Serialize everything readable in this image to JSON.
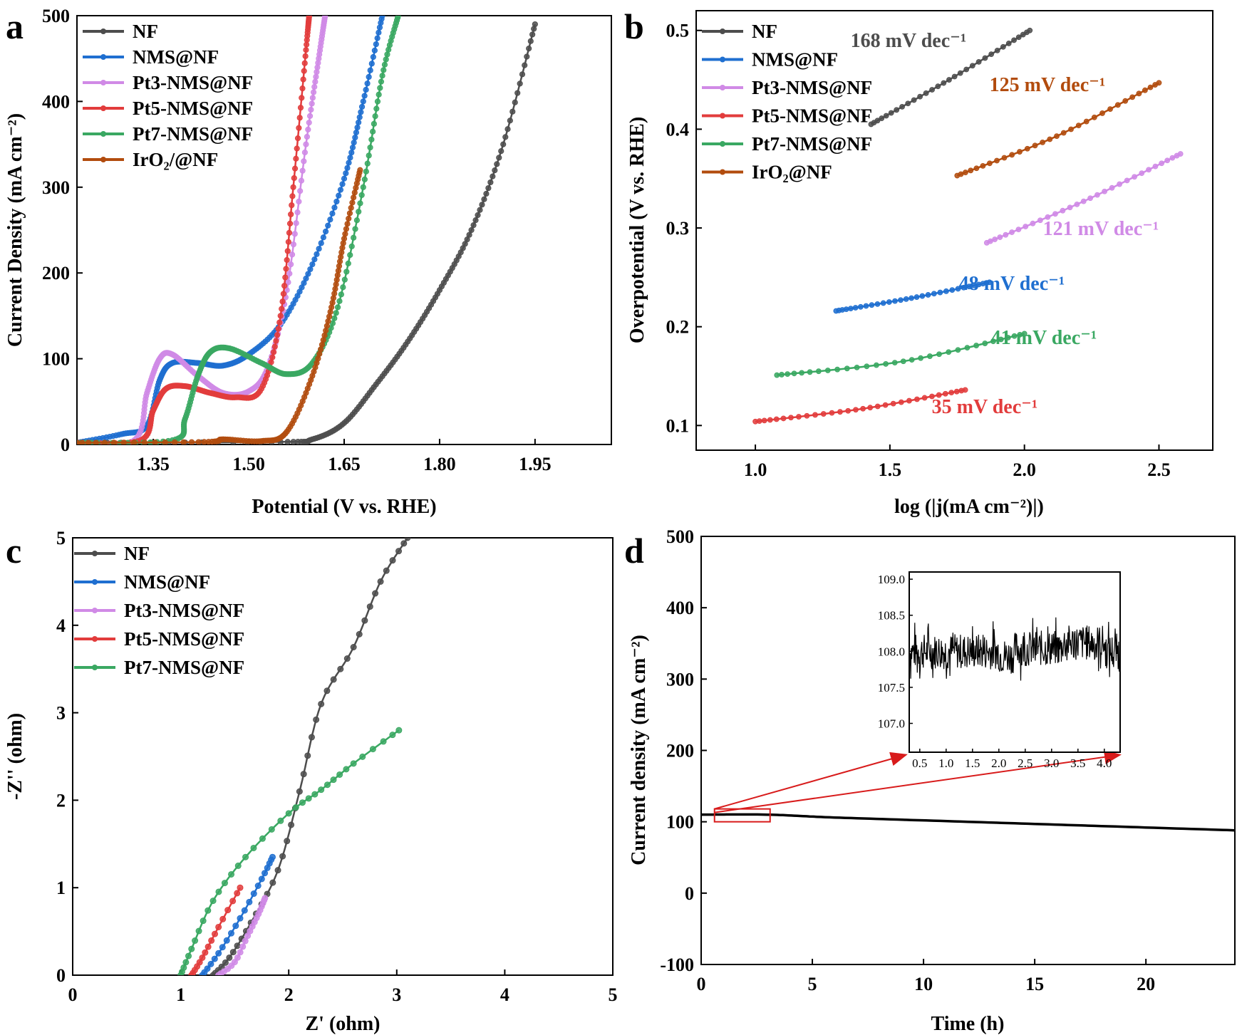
{
  "colors": {
    "NF": "#4d4d4d",
    "NMS": "#1f6fd0",
    "Pt3": "#d08ae6",
    "Pt5": "#e23c3c",
    "Pt7": "#3aa862",
    "IrO2": "#b24c0e",
    "inset_box": "#d81b1b"
  },
  "chart_data": [
    {
      "panel": "a",
      "type": "line",
      "xlabel": "Potential (V vs. RHE)",
      "ylabel": "Current Density (mA cm⁻²)",
      "xlim": [
        1.23,
        2.07
      ],
      "ylim": [
        0,
        500
      ],
      "xticks": [
        "1.35",
        "1.50",
        "1.65",
        "1.80",
        "1.95"
      ],
      "yticks": [
        "0",
        "100",
        "200",
        "300",
        "400",
        "500"
      ],
      "legend_position": "top-left",
      "series": [
        {
          "name": "NF",
          "color_key": "NF",
          "points": [
            [
              1.23,
              2
            ],
            [
              1.55,
              3
            ],
            [
              1.6,
              6
            ],
            [
              1.65,
              25
            ],
            [
              1.7,
              70
            ],
            [
              1.75,
              120
            ],
            [
              1.8,
              180
            ],
            [
              1.85,
              250
            ],
            [
              1.9,
              350
            ],
            [
              1.95,
              490
            ]
          ]
        },
        {
          "name": "NMS@NF",
          "color_key": "NMS",
          "points": [
            [
              1.23,
              2
            ],
            [
              1.3,
              12
            ],
            [
              1.34,
              22
            ],
            [
              1.36,
              75
            ],
            [
              1.38,
              95
            ],
            [
              1.42,
              95
            ],
            [
              1.46,
              92
            ],
            [
              1.5,
              105
            ],
            [
              1.55,
              140
            ],
            [
              1.6,
              210
            ],
            [
              1.65,
              310
            ],
            [
              1.68,
              400
            ],
            [
              1.71,
              500
            ]
          ]
        },
        {
          "name": "Pt3-NMS@NF",
          "color_key": "Pt3",
          "points": [
            [
              1.23,
              2
            ],
            [
              1.32,
              5
            ],
            [
              1.34,
              60
            ],
            [
              1.36,
              100
            ],
            [
              1.38,
              105
            ],
            [
              1.42,
              80
            ],
            [
              1.46,
              60
            ],
            [
              1.5,
              62
            ],
            [
              1.53,
              90
            ],
            [
              1.56,
              180
            ],
            [
              1.59,
              350
            ],
            [
              1.61,
              450
            ],
            [
              1.62,
              500
            ]
          ]
        },
        {
          "name": "Pt5-NMS@NF",
          "color_key": "Pt5",
          "points": [
            [
              1.23,
              2
            ],
            [
              1.33,
              5
            ],
            [
              1.35,
              40
            ],
            [
              1.37,
              65
            ],
            [
              1.4,
              68
            ],
            [
              1.44,
              60
            ],
            [
              1.48,
              55
            ],
            [
              1.52,
              65
            ],
            [
              1.55,
              150
            ],
            [
              1.57,
              300
            ],
            [
              1.59,
              460
            ],
            [
              1.595,
              500
            ]
          ]
        },
        {
          "name": "Pt7-NMS@NF",
          "color_key": "Pt7",
          "points": [
            [
              1.23,
              2
            ],
            [
              1.38,
              5
            ],
            [
              1.4,
              30
            ],
            [
              1.42,
              80
            ],
            [
              1.44,
              108
            ],
            [
              1.47,
              112
            ],
            [
              1.52,
              95
            ],
            [
              1.56,
              82
            ],
            [
              1.6,
              95
            ],
            [
              1.64,
              160
            ],
            [
              1.68,
              300
            ],
            [
              1.71,
              430
            ],
            [
              1.735,
              500
            ]
          ]
        },
        {
          "name": "IrO₂/@NF",
          "color_key": "IrO2",
          "points": [
            [
              1.23,
              2
            ],
            [
              1.43,
              3
            ],
            [
              1.46,
              6
            ],
            [
              1.52,
              4
            ],
            [
              1.56,
              15
            ],
            [
              1.6,
              80
            ],
            [
              1.63,
              160
            ],
            [
              1.65,
              240
            ],
            [
              1.675,
              320
            ]
          ]
        }
      ]
    },
    {
      "panel": "b",
      "type": "line",
      "xlabel": "log (|j(mA cm⁻²)|)",
      "ylabel": "Overpotential (V vs. RHE)",
      "xlim": [
        0.78,
        2.7
      ],
      "ylim": [
        0.075,
        0.52
      ],
      "xticks": [
        "1.0",
        "1.5",
        "2.0",
        "2.5"
      ],
      "yticks": [
        "0.1",
        "0.2",
        "0.3",
        "0.4",
        "0.5"
      ],
      "legend_position": "top-left",
      "series": [
        {
          "name": "NF",
          "color_key": "NF",
          "points": [
            [
              1.43,
              0.405
            ],
            [
              1.72,
              0.45
            ],
            [
              2.02,
              0.5
            ]
          ],
          "annotation": "168 mV dec⁻¹"
        },
        {
          "name": "NMS@NF",
          "color_key": "NMS",
          "points": [
            [
              1.3,
              0.216
            ],
            [
              1.58,
              0.229
            ],
            [
              1.87,
              0.245
            ]
          ],
          "annotation": "48 mV dec⁻¹"
        },
        {
          "name": "Pt3-NMS@NF",
          "color_key": "Pt3",
          "points": [
            [
              1.86,
              0.285
            ],
            [
              2.22,
              0.327
            ],
            [
              2.58,
              0.375
            ]
          ],
          "annotation": "121 mV dec⁻¹"
        },
        {
          "name": "Pt5-NMS@NF",
          "color_key": "Pt5",
          "points": [
            [
              1.0,
              0.104
            ],
            [
              1.4,
              0.117
            ],
            [
              1.78,
              0.136
            ]
          ],
          "annotation": "35 mV dec⁻¹"
        },
        {
          "name": "Pt7-NMS@NF",
          "color_key": "Pt7",
          "points": [
            [
              1.08,
              0.151
            ],
            [
              1.55,
              0.165
            ],
            [
              2.0,
              0.193
            ]
          ],
          "annotation": "41 mV dec⁻¹"
        },
        {
          "name": "IrO₂@NF",
          "color_key": "IrO2",
          "points": [
            [
              1.75,
              0.353
            ],
            [
              2.12,
              0.393
            ],
            [
              2.5,
              0.447
            ]
          ],
          "annotation": "125 mV dec⁻¹"
        }
      ]
    },
    {
      "panel": "c",
      "type": "line",
      "xlabel": "Z' (ohm)",
      "ylabel": "-Z'' (ohm)",
      "xlim": [
        0,
        5
      ],
      "ylim": [
        0,
        5
      ],
      "xticks": [
        "0",
        "1",
        "2",
        "3",
        "4",
        "5"
      ],
      "yticks": [
        "0",
        "1",
        "2",
        "3",
        "4",
        "5"
      ],
      "legend_position": "top-left",
      "series": [
        {
          "name": "NF",
          "color_key": "NF",
          "points": [
            [
              1.3,
              0
            ],
            [
              1.45,
              0.2
            ],
            [
              1.65,
              0.6
            ],
            [
              1.9,
              1.2
            ],
            [
              2.1,
              2.1
            ],
            [
              2.3,
              3.1
            ],
            [
              2.6,
              3.75
            ],
            [
              2.85,
              4.5
            ],
            [
              3.1,
              5.0
            ]
          ]
        },
        {
          "name": "NMS@NF",
          "color_key": "NMS",
          "points": [
            [
              1.2,
              0
            ],
            [
              1.35,
              0.25
            ],
            [
              1.55,
              0.65
            ],
            [
              1.75,
              1.1
            ],
            [
              1.85,
              1.35
            ]
          ]
        },
        {
          "name": "Pt3-NMS@NF",
          "color_key": "Pt3",
          "points": [
            [
              1.35,
              0
            ],
            [
              1.5,
              0.15
            ],
            [
              1.62,
              0.45
            ],
            [
              1.72,
              0.7
            ],
            [
              1.78,
              0.88
            ]
          ]
        },
        {
          "name": "Pt5-NMS@NF",
          "color_key": "Pt5",
          "points": [
            [
              1.1,
              0
            ],
            [
              1.2,
              0.2
            ],
            [
              1.35,
              0.55
            ],
            [
              1.55,
              1.0
            ]
          ]
        },
        {
          "name": "Pt7-NMS@NF",
          "color_key": "Pt7",
          "points": [
            [
              1.0,
              0
            ],
            [
              1.1,
              0.3
            ],
            [
              1.3,
              0.85
            ],
            [
              1.6,
              1.35
            ],
            [
              2.0,
              1.85
            ],
            [
              2.3,
              2.12
            ],
            [
              2.6,
              2.42
            ],
            [
              3.02,
              2.8
            ]
          ]
        }
      ]
    },
    {
      "panel": "d",
      "type": "line",
      "xlabel": "Time (h)",
      "ylabel": "Current density (mA cm⁻²)",
      "xlim": [
        0,
        24
      ],
      "ylim": [
        -100,
        500
      ],
      "xticks": [
        "0",
        "5",
        "10",
        "15",
        "20"
      ],
      "yticks": [
        "-100",
        "0",
        "100",
        "200",
        "300",
        "400",
        "500"
      ],
      "series": [
        {
          "name": "",
          "points": [
            [
              0,
              110
            ],
            [
              3,
              110
            ],
            [
              6,
              106
            ],
            [
              12,
              100
            ],
            [
              18,
              94
            ],
            [
              24,
              88
            ]
          ]
        }
      ],
      "inset": {
        "xlim": [
          0.3,
          4.3
        ],
        "ylim": [
          106.6,
          109.1
        ],
        "xticks": [
          "0.5",
          "1.0",
          "1.5",
          "2.0",
          "2.5",
          "3.0",
          "3.5",
          "4.0"
        ],
        "yticks": [
          "107.0",
          "107.5",
          "108.0",
          "108.5",
          "109.0"
        ],
        "mean_level": 108.0,
        "noise_amplitude": 0.25
      }
    }
  ],
  "panel_labels": {
    "a": "a",
    "b": "b",
    "c": "c",
    "d": "d"
  },
  "chart_b_annotations": [
    "168 mV dec⁻¹",
    "125 mV dec⁻¹",
    "121 mV dec⁻¹",
    "48 mV dec⁻¹",
    "41 mV dec⁻¹",
    "35 mV dec⁻¹"
  ]
}
